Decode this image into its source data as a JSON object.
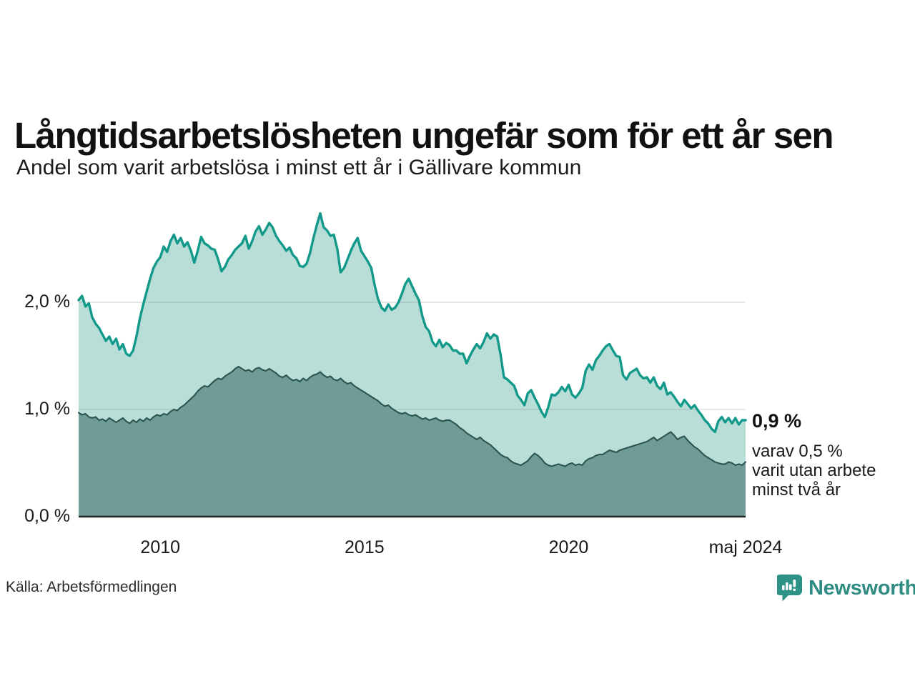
{
  "title": "Långtidsarbetslösheten ungefär som för ett år sen",
  "subtitle": "Andel som varit arbetslösa i minst ett år i Gällivare kommun",
  "source": "Källa: Arbetsförmedlingen",
  "logo": {
    "brand": "Newsworthy",
    "icon": "newsworthy-speech-bubble-bar-chart-icon"
  },
  "annotation": {
    "value_label": "0,9 %",
    "detail_lines": [
      "varav 0,5 %",
      "varit utan arbete",
      "minst två år"
    ]
  },
  "colors": {
    "line_1yr": "#12998a",
    "fill_1yr": "#b9ded8",
    "line_2yr": "#2c5550",
    "fill_2yr": "#6f9c97",
    "gridline": "rgba(130,130,130,0.24)",
    "baseline": "#222222",
    "brand_teal": "#2e8c83"
  },
  "chart_data": {
    "type": "area",
    "title": "Långtidsarbetslösheten ungefär som för ett år sen",
    "subtitle": "Andel som varit arbetslösa i minst ett år i Gällivare kommun",
    "frequency": "monthly",
    "x_start": "2008-01",
    "x_end": "2024-05",
    "ylim": [
      0,
      2.95
    ],
    "grid": "horizontal",
    "legend": "none",
    "y_ticks": [
      {
        "value": 0,
        "label": "0,0 %"
      },
      {
        "value": 1,
        "label": "1,0 %"
      },
      {
        "value": 2,
        "label": "2,0 %"
      }
    ],
    "x_ticks": [
      {
        "month_index": 24,
        "label": "2010"
      },
      {
        "month_index": 84,
        "label": "2015"
      },
      {
        "month_index": 144,
        "label": "2020"
      },
      {
        "month_index": 196,
        "label": "maj 2024"
      }
    ],
    "series": [
      {
        "name": "Arbetslösa minst ett år",
        "end_value_label": "0,9 %",
        "values": [
          2.02,
          2.06,
          1.96,
          1.99,
          1.86,
          1.8,
          1.76,
          1.7,
          1.64,
          1.68,
          1.61,
          1.66,
          1.56,
          1.61,
          1.52,
          1.5,
          1.55,
          1.68,
          1.85,
          1.98,
          2.1,
          2.22,
          2.32,
          2.38,
          2.42,
          2.52,
          2.47,
          2.57,
          2.63,
          2.55,
          2.6,
          2.52,
          2.56,
          2.48,
          2.37,
          2.48,
          2.61,
          2.55,
          2.53,
          2.5,
          2.49,
          2.4,
          2.29,
          2.33,
          2.4,
          2.44,
          2.49,
          2.52,
          2.55,
          2.62,
          2.5,
          2.57,
          2.66,
          2.71,
          2.63,
          2.68,
          2.74,
          2.7,
          2.62,
          2.57,
          2.53,
          2.48,
          2.51,
          2.44,
          2.41,
          2.34,
          2.33,
          2.36,
          2.46,
          2.6,
          2.72,
          2.83,
          2.7,
          2.67,
          2.62,
          2.63,
          2.5,
          2.28,
          2.32,
          2.4,
          2.48,
          2.55,
          2.6,
          2.48,
          2.43,
          2.38,
          2.32,
          2.16,
          2.03,
          1.95,
          1.92,
          1.98,
          1.93,
          1.95,
          2.0,
          2.08,
          2.17,
          2.22,
          2.15,
          2.08,
          2.02,
          1.87,
          1.77,
          1.73,
          1.63,
          1.59,
          1.65,
          1.58,
          1.62,
          1.6,
          1.55,
          1.55,
          1.52,
          1.52,
          1.43,
          1.5,
          1.56,
          1.61,
          1.57,
          1.63,
          1.71,
          1.66,
          1.7,
          1.68,
          1.51,
          1.3,
          1.28,
          1.25,
          1.22,
          1.13,
          1.09,
          1.04,
          1.15,
          1.18,
          1.11,
          1.05,
          0.98,
          0.93,
          1.02,
          1.14,
          1.13,
          1.16,
          1.21,
          1.17,
          1.23,
          1.14,
          1.11,
          1.15,
          1.2,
          1.36,
          1.42,
          1.37,
          1.46,
          1.5,
          1.55,
          1.59,
          1.61,
          1.55,
          1.5,
          1.49,
          1.32,
          1.28,
          1.34,
          1.36,
          1.38,
          1.32,
          1.29,
          1.3,
          1.25,
          1.3,
          1.22,
          1.19,
          1.25,
          1.14,
          1.16,
          1.12,
          1.07,
          1.03,
          1.09,
          1.05,
          1.01,
          1.04,
          0.99,
          0.95,
          0.9,
          0.87,
          0.82,
          0.79,
          0.89,
          0.93,
          0.88,
          0.92,
          0.87,
          0.92,
          0.86,
          0.9,
          0.9
        ]
      },
      {
        "name": "Arbetslösa minst två år",
        "end_value_label": "0,5 %",
        "values": [
          0.97,
          0.95,
          0.96,
          0.93,
          0.92,
          0.93,
          0.9,
          0.91,
          0.89,
          0.92,
          0.9,
          0.88,
          0.9,
          0.92,
          0.89,
          0.87,
          0.9,
          0.88,
          0.91,
          0.89,
          0.92,
          0.9,
          0.93,
          0.95,
          0.94,
          0.96,
          0.95,
          0.98,
          1.0,
          0.99,
          1.02,
          1.04,
          1.07,
          1.1,
          1.13,
          1.17,
          1.2,
          1.22,
          1.21,
          1.24,
          1.27,
          1.29,
          1.28,
          1.31,
          1.33,
          1.35,
          1.38,
          1.4,
          1.38,
          1.36,
          1.37,
          1.35,
          1.38,
          1.39,
          1.37,
          1.36,
          1.38,
          1.36,
          1.34,
          1.31,
          1.3,
          1.32,
          1.29,
          1.27,
          1.28,
          1.26,
          1.29,
          1.27,
          1.3,
          1.32,
          1.33,
          1.35,
          1.32,
          1.3,
          1.31,
          1.28,
          1.27,
          1.29,
          1.26,
          1.24,
          1.25,
          1.22,
          1.2,
          1.18,
          1.16,
          1.14,
          1.12,
          1.1,
          1.08,
          1.05,
          1.03,
          1.04,
          1.01,
          0.99,
          0.97,
          0.96,
          0.97,
          0.95,
          0.94,
          0.95,
          0.93,
          0.91,
          0.92,
          0.9,
          0.91,
          0.92,
          0.9,
          0.89,
          0.9,
          0.9,
          0.88,
          0.86,
          0.83,
          0.81,
          0.78,
          0.76,
          0.74,
          0.72,
          0.74,
          0.71,
          0.69,
          0.67,
          0.64,
          0.61,
          0.58,
          0.56,
          0.55,
          0.52,
          0.5,
          0.49,
          0.48,
          0.5,
          0.52,
          0.56,
          0.59,
          0.57,
          0.54,
          0.5,
          0.48,
          0.47,
          0.48,
          0.49,
          0.48,
          0.47,
          0.49,
          0.5,
          0.48,
          0.49,
          0.48,
          0.52,
          0.54,
          0.55,
          0.57,
          0.58,
          0.58,
          0.6,
          0.62,
          0.61,
          0.6,
          0.62,
          0.63,
          0.64,
          0.65,
          0.66,
          0.67,
          0.68,
          0.69,
          0.7,
          0.72,
          0.74,
          0.71,
          0.73,
          0.75,
          0.77,
          0.79,
          0.76,
          0.72,
          0.74,
          0.75,
          0.71,
          0.68,
          0.65,
          0.63,
          0.6,
          0.57,
          0.55,
          0.53,
          0.51,
          0.5,
          0.49,
          0.49,
          0.51,
          0.5,
          0.48,
          0.49,
          0.48,
          0.51
        ]
      }
    ]
  }
}
